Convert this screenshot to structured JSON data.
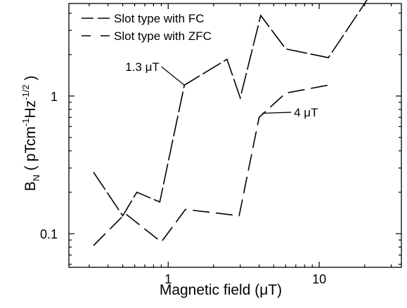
{
  "chart_data": {
    "type": "line",
    "xlabel": "Magnetic field (μT)",
    "ylabel_parts": {
      "main": "B",
      "sub": "N",
      "mid": " ( pTcm",
      "sup1": "-1",
      "mid2": "Hz",
      "sup2": "-1/2",
      "end": " )"
    },
    "x_scale": "log",
    "y_scale": "log",
    "xlim": [
      0.22,
      35
    ],
    "ylim": [
      0.057,
      4.7
    ],
    "x_ticks": [
      {
        "value": 1,
        "label": "1"
      },
      {
        "value": 10,
        "label": "10"
      }
    ],
    "y_ticks": [
      {
        "value": 0.1,
        "label": "0.1"
      },
      {
        "value": 1,
        "label": "1"
      }
    ],
    "legend_position": "top-left",
    "series": [
      {
        "name": "Slot type with FC",
        "color": "#000000",
        "dash": "long",
        "x": [
          0.32,
          0.5,
          0.62,
          0.88,
          1.28,
          2.45,
          3.0,
          4.1,
          6.0,
          11.5,
          22.0
        ],
        "y": [
          0.28,
          0.135,
          0.2,
          0.17,
          1.2,
          1.85,
          0.97,
          3.85,
          2.2,
          1.9,
          5.5
        ]
      },
      {
        "name": "Slot type with ZFC",
        "color": "#000000",
        "dash": "short",
        "x": [
          0.32,
          0.52,
          0.9,
          1.3,
          2.95,
          4.0,
          6.0,
          11.5
        ],
        "y": [
          0.082,
          0.14,
          0.087,
          0.15,
          0.135,
          0.7,
          1.05,
          1.2
        ]
      }
    ],
    "annotations": [
      {
        "text": "1.3 μT",
        "x": 0.52,
        "y": 1.52,
        "line_to": [
          1.28,
          1.2
        ]
      },
      {
        "text": "4 μT",
        "x": 6.8,
        "y": 0.71,
        "line_to": [
          4.2,
          0.75
        ]
      }
    ]
  }
}
